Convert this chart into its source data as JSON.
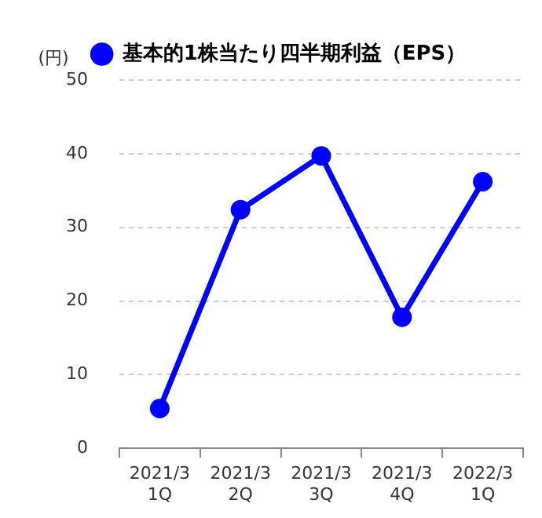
{
  "chart_data": {
    "type": "line",
    "ylabel": "(円)",
    "categories": [
      "2021/3\n1Q",
      "2021/3\n2Q",
      "2021/3\n3Q",
      "2021/3\n4Q",
      "2022/3\n1Q"
    ],
    "series": [
      {
        "name": "基本的1株当たり四半期利益（EPS）",
        "color": "#0000ff",
        "values": [
          5.4,
          32.4,
          39.7,
          17.8,
          36.2
        ]
      }
    ],
    "ylim": [
      0,
      50
    ],
    "yticks": [
      0,
      10,
      20,
      30,
      40,
      50
    ],
    "grid": "y",
    "legend": "top",
    "marker": "circle",
    "line_style": "solid"
  }
}
